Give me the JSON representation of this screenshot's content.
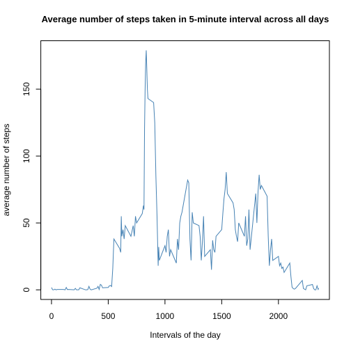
{
  "chart_data": {
    "type": "line",
    "title": "Average number of steps taken in 5-minute interval across all days",
    "x_label": "Intervals of the day",
    "y_label": "average number of steps",
    "xlim": [
      -94.2,
      2449.2
    ],
    "ylim": [
      -7.2,
      186.2
    ],
    "xticks": [
      0,
      500,
      1000,
      1500,
      2000
    ],
    "yticks": [
      0,
      50,
      100,
      150
    ],
    "x": [
      0,
      10,
      20,
      30,
      40,
      50,
      100,
      110,
      120,
      130,
      140,
      150,
      200,
      210,
      220,
      230,
      240,
      250,
      300,
      310,
      320,
      330,
      340,
      350,
      400,
      410,
      420,
      430,
      440,
      450,
      500,
      510,
      520,
      530,
      540,
      550,
      600,
      610,
      615,
      620,
      630,
      640,
      650,
      700,
      710,
      720,
      730,
      740,
      750,
      800,
      810,
      815,
      820,
      825,
      830,
      835,
      840,
      845,
      850,
      900,
      910,
      920,
      930,
      940,
      945,
      950,
      1000,
      1010,
      1020,
      1030,
      1040,
      1050,
      1100,
      1110,
      1120,
      1130,
      1140,
      1150,
      1200,
      1210,
      1220,
      1230,
      1240,
      1250,
      1300,
      1310,
      1320,
      1330,
      1340,
      1350,
      1400,
      1410,
      1420,
      1430,
      1440,
      1450,
      1500,
      1510,
      1520,
      1530,
      1540,
      1550,
      1600,
      1610,
      1620,
      1630,
      1640,
      1650,
      1700,
      1710,
      1720,
      1730,
      1740,
      1750,
      1800,
      1810,
      1820,
      1830,
      1840,
      1850,
      1900,
      1910,
      1920,
      1930,
      1940,
      1950,
      2000,
      2010,
      2020,
      2030,
      2040,
      2050,
      2100,
      2110,
      2120,
      2130,
      2140,
      2150,
      2200,
      2210,
      2220,
      2230,
      2240,
      2250,
      2300,
      2310,
      2320,
      2330,
      2340,
      2350,
      2355
    ],
    "series": [
      {
        "name": "average number of steps",
        "color": "#4682b4",
        "values": [
          1.7,
          0.1,
          0,
          0.5,
          0,
          0.3,
          0.3,
          0.2,
          0,
          1.8,
          0.2,
          0.3,
          0,
          1.1,
          0,
          0,
          0,
          1.5,
          0,
          0,
          0.2,
          2.6,
          0.5,
          0,
          1.2,
          2.6,
          0.3,
          4.1,
          3.5,
          1.5,
          1.8,
          3,
          3.3,
          2.5,
          16,
          38,
          31,
          28,
          55,
          40,
          45,
          38,
          48,
          40,
          44,
          48,
          40,
          55,
          50,
          57,
          63,
          60,
          120,
          150,
          170,
          179,
          165,
          150,
          143,
          140,
          125,
          85,
          55,
          18,
          32,
          22,
          33,
          28,
          40,
          45,
          25,
          30,
          20,
          38,
          30,
          50,
          55,
          58,
          82,
          80,
          38,
          22,
          58,
          50,
          48,
          40,
          22,
          36,
          55,
          25,
          30,
          15,
          37,
          30,
          28,
          40,
          45,
          57,
          68,
          75,
          88,
          72,
          65,
          60,
          45,
          40,
          36,
          50,
          40,
          55,
          33,
          38,
          60,
          30,
          72,
          50,
          73,
          86,
          75,
          78,
          70,
          40,
          18,
          30,
          38,
          22,
          25,
          18,
          20,
          16,
          17,
          13,
          20,
          10,
          2,
          1,
          0.5,
          1,
          6,
          7,
          1,
          0.5,
          0,
          3,
          4,
          1,
          0,
          0,
          3,
          0.3,
          1.1
        ]
      }
    ]
  }
}
